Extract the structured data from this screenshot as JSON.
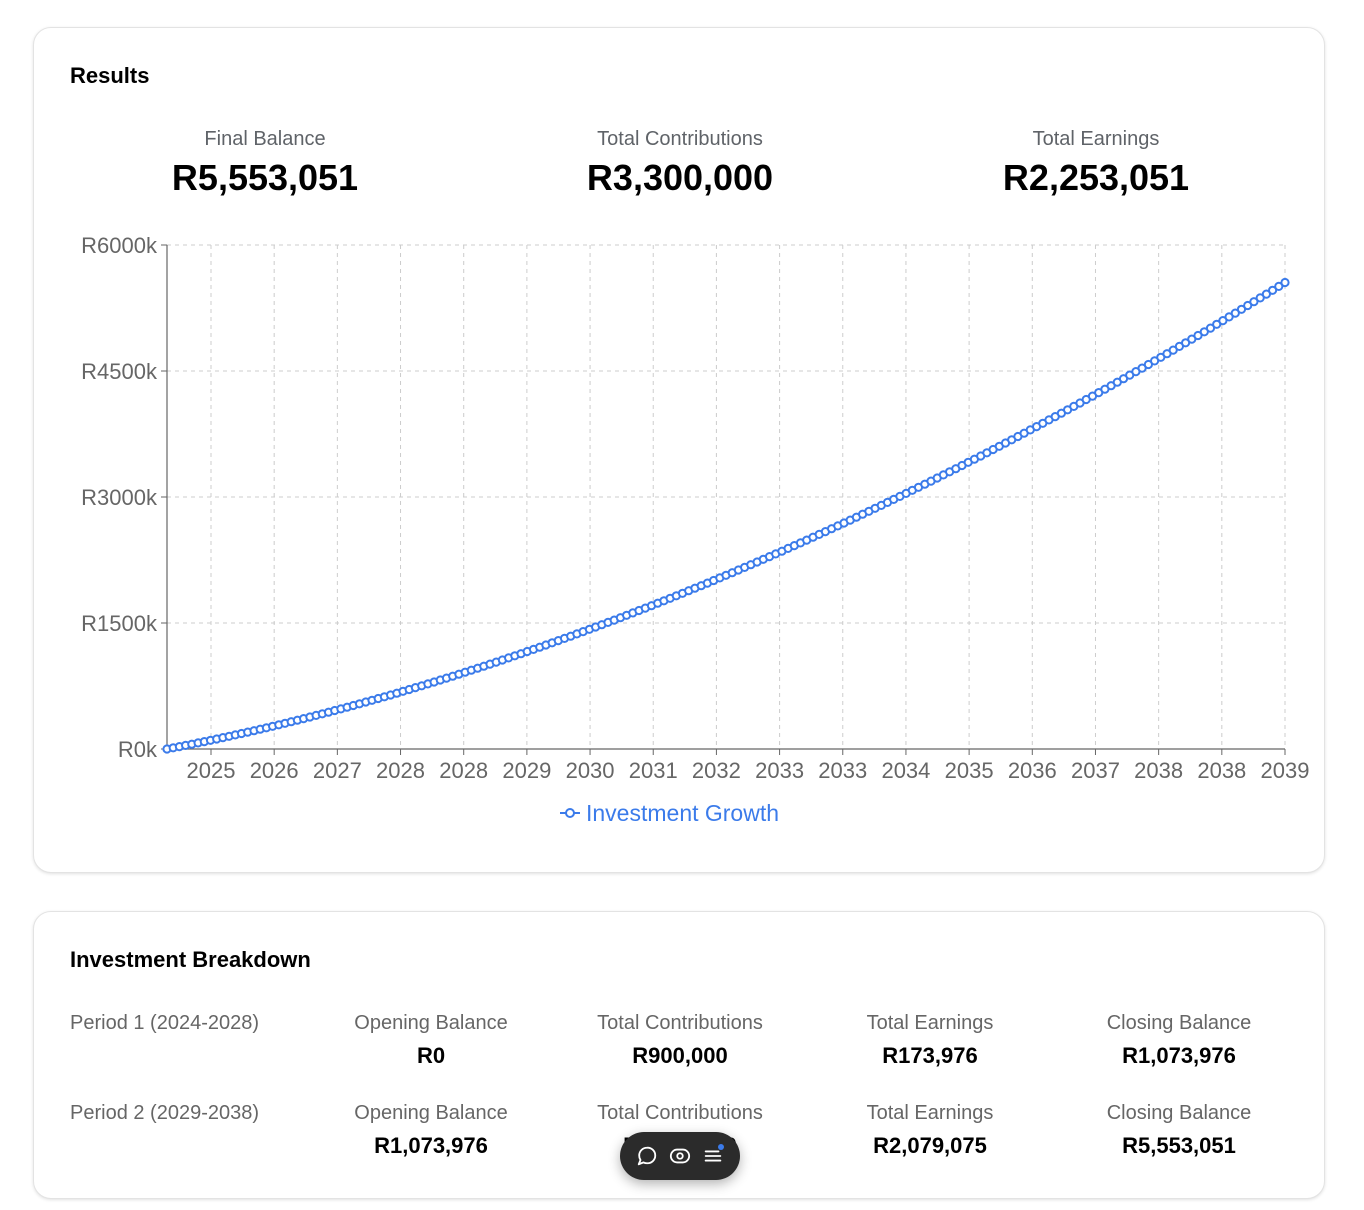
{
  "results": {
    "title": "Results",
    "stats": [
      {
        "label": "Final Balance",
        "value": "R5,553,051"
      },
      {
        "label": "Total Contributions",
        "value": "R3,300,000"
      },
      {
        "label": "Total Earnings",
        "value": "R2,253,051"
      }
    ]
  },
  "chart_data": {
    "type": "line",
    "title": "",
    "xlabel": "",
    "ylabel": "",
    "ylim": [
      0,
      6000000
    ],
    "y_ticks": [
      "R0k",
      "R1500k",
      "R3000k",
      "R4500k",
      "R6000k"
    ],
    "x_ticks": [
      "2025",
      "2026",
      "2027",
      "2028",
      "2028",
      "2029",
      "2030",
      "2031",
      "2032",
      "2033",
      "2033",
      "2034",
      "2035",
      "2036",
      "2037",
      "2038",
      "2038",
      "2039"
    ],
    "grid": true,
    "legend_position": "bottom",
    "series": [
      {
        "name": "Investment Growth",
        "color": "#3b7bea",
        "marker": "open-circle",
        "points_count": 180,
        "start_value": 0,
        "end_value": 5553051,
        "anchor_values": [
          {
            "x": "2029",
            "y": 1073976
          },
          {
            "x": "2039",
            "y": 5553051
          }
        ]
      }
    ]
  },
  "breakdown": {
    "title": "Investment Breakdown",
    "rows": [
      {
        "period": "Period 1 (2024-2028)",
        "cells": [
          {
            "label": "Opening Balance",
            "value": "R0"
          },
          {
            "label": "Total Contributions",
            "value": "R900,000"
          },
          {
            "label": "Total Earnings",
            "value": "R173,976"
          },
          {
            "label": "Closing Balance",
            "value": "R1,073,976"
          }
        ]
      },
      {
        "period": "Period 2 (2029-2038)",
        "cells": [
          {
            "label": "Opening Balance",
            "value": "R1,073,976"
          },
          {
            "label": "Total Contributions",
            "value": "R2,400,000"
          },
          {
            "label": "Total Earnings",
            "value": "R2,079,075"
          },
          {
            "label": "Closing Balance",
            "value": "R5,553,051"
          }
        ]
      }
    ]
  },
  "toolbar": {
    "icons": [
      "comment-icon",
      "eye-icon",
      "menu-icon"
    ]
  }
}
